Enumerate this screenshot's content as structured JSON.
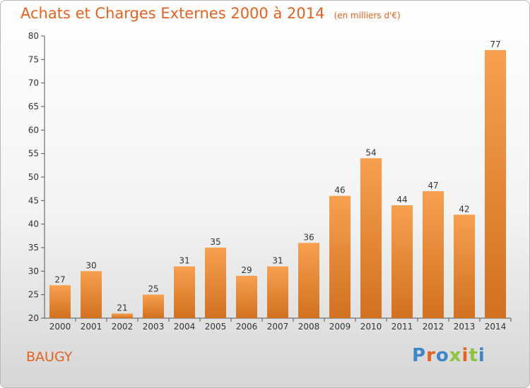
{
  "header": {
    "title": "Achats et Charges Externes 2000 à 2014",
    "unit": "(en milliers d'€)"
  },
  "footer": {
    "commune": "BAUGY",
    "brand": "Proxiti"
  },
  "colors": {
    "accent": "#e8601c",
    "bar_light": "#f7a04e",
    "bar_dark": "#d2711f",
    "brand_letters": [
      "#3e86c7",
      "#e8601c",
      "#3e86c7",
      "#8bc43f",
      "#e8601c",
      "#8bc43f",
      "#3e86c7"
    ]
  },
  "chart_data": {
    "type": "bar",
    "categories": [
      "2000",
      "2001",
      "2002",
      "2003",
      "2004",
      "2005",
      "2006",
      "2007",
      "2008",
      "2009",
      "2010",
      "2011",
      "2012",
      "2013",
      "2014"
    ],
    "values": [
      27,
      30,
      21,
      25,
      31,
      35,
      29,
      31,
      36,
      46,
      54,
      44,
      47,
      42,
      77
    ],
    "title": "Achats et Charges Externes 2000 à 2014",
    "subtitle": "(en milliers d'€)",
    "ylim": [
      20,
      80
    ],
    "yticks": [
      20,
      25,
      30,
      35,
      40,
      45,
      50,
      55,
      60,
      65,
      70,
      75,
      80
    ],
    "grid": false,
    "legend": "none"
  }
}
